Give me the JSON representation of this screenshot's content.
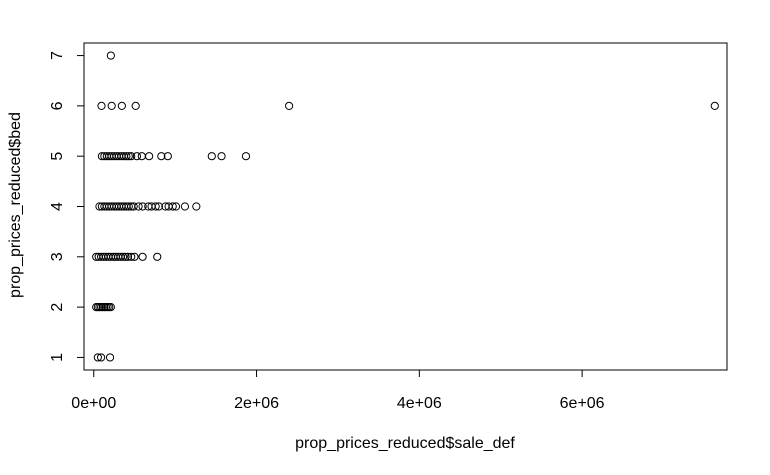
{
  "chart_data": {
    "type": "scatter",
    "title": "",
    "xlabel": "prop_prices_reduced$sale_def",
    "ylabel": "prop_prices_reduced$bed",
    "xlim": [
      -120000,
      7780000
    ],
    "ylim": [
      0.75,
      7.25
    ],
    "x_ticks": [
      {
        "value": 0,
        "label": "0e+00"
      },
      {
        "value": 2000000,
        "label": "2e+06"
      },
      {
        "value": 4000000,
        "label": "4e+06"
      },
      {
        "value": 6000000,
        "label": "6e+06"
      }
    ],
    "y_ticks": [
      {
        "value": 1,
        "label": "1"
      },
      {
        "value": 2,
        "label": "2"
      },
      {
        "value": 3,
        "label": "3"
      },
      {
        "value": 4,
        "label": "4"
      },
      {
        "value": 5,
        "label": "5"
      },
      {
        "value": 6,
        "label": "6"
      },
      {
        "value": 7,
        "label": "7"
      }
    ],
    "grid": false,
    "legend": "none",
    "marker": "open-circle",
    "points": [
      {
        "x": 210000,
        "y": 7
      },
      {
        "x": 95000,
        "y": 6
      },
      {
        "x": 220000,
        "y": 6
      },
      {
        "x": 345000,
        "y": 6
      },
      {
        "x": 515000,
        "y": 6
      },
      {
        "x": 2400000,
        "y": 6
      },
      {
        "x": 7630000,
        "y": 6
      },
      {
        "x": 100000,
        "y": 5
      },
      {
        "x": 130000,
        "y": 5
      },
      {
        "x": 160000,
        "y": 5
      },
      {
        "x": 190000,
        "y": 5
      },
      {
        "x": 220000,
        "y": 5
      },
      {
        "x": 250000,
        "y": 5
      },
      {
        "x": 280000,
        "y": 5
      },
      {
        "x": 310000,
        "y": 5
      },
      {
        "x": 340000,
        "y": 5
      },
      {
        "x": 370000,
        "y": 5
      },
      {
        "x": 400000,
        "y": 5
      },
      {
        "x": 430000,
        "y": 5
      },
      {
        "x": 460000,
        "y": 5
      },
      {
        "x": 530000,
        "y": 5
      },
      {
        "x": 590000,
        "y": 5
      },
      {
        "x": 680000,
        "y": 5
      },
      {
        "x": 830000,
        "y": 5
      },
      {
        "x": 910000,
        "y": 5
      },
      {
        "x": 1450000,
        "y": 5
      },
      {
        "x": 1570000,
        "y": 5
      },
      {
        "x": 1870000,
        "y": 5
      },
      {
        "x": 70000,
        "y": 4
      },
      {
        "x": 100000,
        "y": 4
      },
      {
        "x": 130000,
        "y": 4
      },
      {
        "x": 160000,
        "y": 4
      },
      {
        "x": 190000,
        "y": 4
      },
      {
        "x": 220000,
        "y": 4
      },
      {
        "x": 250000,
        "y": 4
      },
      {
        "x": 280000,
        "y": 4
      },
      {
        "x": 310000,
        "y": 4
      },
      {
        "x": 340000,
        "y": 4
      },
      {
        "x": 370000,
        "y": 4
      },
      {
        "x": 400000,
        "y": 4
      },
      {
        "x": 430000,
        "y": 4
      },
      {
        "x": 460000,
        "y": 4
      },
      {
        "x": 490000,
        "y": 4
      },
      {
        "x": 550000,
        "y": 4
      },
      {
        "x": 600000,
        "y": 4
      },
      {
        "x": 670000,
        "y": 4
      },
      {
        "x": 710000,
        "y": 4
      },
      {
        "x": 760000,
        "y": 4
      },
      {
        "x": 800000,
        "y": 4
      },
      {
        "x": 880000,
        "y": 4
      },
      {
        "x": 920000,
        "y": 4
      },
      {
        "x": 970000,
        "y": 4
      },
      {
        "x": 1010000,
        "y": 4
      },
      {
        "x": 1120000,
        "y": 4
      },
      {
        "x": 1260000,
        "y": 4
      },
      {
        "x": 30000,
        "y": 3
      },
      {
        "x": 60000,
        "y": 3
      },
      {
        "x": 90000,
        "y": 3
      },
      {
        "x": 120000,
        "y": 3
      },
      {
        "x": 150000,
        "y": 3
      },
      {
        "x": 180000,
        "y": 3
      },
      {
        "x": 210000,
        "y": 3
      },
      {
        "x": 240000,
        "y": 3
      },
      {
        "x": 270000,
        "y": 3
      },
      {
        "x": 300000,
        "y": 3
      },
      {
        "x": 330000,
        "y": 3
      },
      {
        "x": 360000,
        "y": 3
      },
      {
        "x": 390000,
        "y": 3
      },
      {
        "x": 420000,
        "y": 3
      },
      {
        "x": 460000,
        "y": 3
      },
      {
        "x": 500000,
        "y": 3
      },
      {
        "x": 600000,
        "y": 3
      },
      {
        "x": 780000,
        "y": 3
      },
      {
        "x": 30000,
        "y": 2
      },
      {
        "x": 50000,
        "y": 2
      },
      {
        "x": 70000,
        "y": 2
      },
      {
        "x": 90000,
        "y": 2
      },
      {
        "x": 110000,
        "y": 2
      },
      {
        "x": 130000,
        "y": 2
      },
      {
        "x": 150000,
        "y": 2
      },
      {
        "x": 170000,
        "y": 2
      },
      {
        "x": 190000,
        "y": 2
      },
      {
        "x": 210000,
        "y": 2
      },
      {
        "x": 50000,
        "y": 1
      },
      {
        "x": 90000,
        "y": 1
      },
      {
        "x": 200000,
        "y": 1
      }
    ]
  }
}
